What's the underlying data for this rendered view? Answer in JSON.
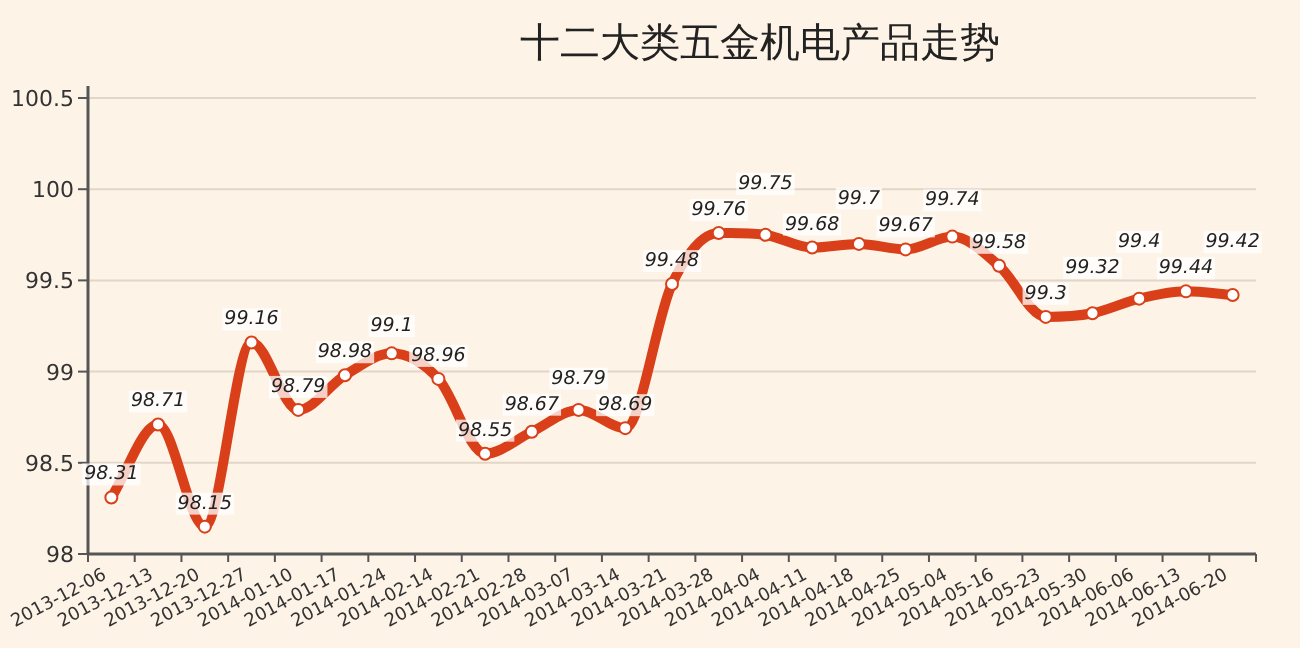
{
  "chart_data": {
    "type": "line",
    "title": "十二大类五金机电产品走势",
    "categories": [
      "2013-12-06",
      "2013-12-13",
      "2013-12-20",
      "2013-12-27",
      "2014-01-10",
      "2014-01-17",
      "2014-01-24",
      "2014-02-14",
      "2014-02-21",
      "2014-02-28",
      "2014-03-07",
      "2014-03-14",
      "2014-03-21",
      "2014-03-28",
      "2014-04-04",
      "2014-04-11",
      "2014-04-18",
      "2014-04-25",
      "2014-05-04",
      "2014-05-16",
      "2014-05-23",
      "2014-05-30",
      "2014-06-06",
      "2014-06-13",
      "2014-06-20"
    ],
    "series": [
      {
        "color": "#d9401a",
        "values": [
          98.31,
          98.71,
          98.15,
          99.16,
          98.79,
          98.98,
          99.1,
          98.96,
          98.55,
          98.67,
          98.79,
          98.69,
          99.48,
          99.76,
          99.75,
          99.68,
          99.7,
          99.67,
          99.74,
          99.58,
          99.3,
          99.32,
          99.4,
          99.44,
          99.42
        ]
      }
    ],
    "ylim": [
      98,
      100.5
    ],
    "yticks": [
      98,
      98.5,
      99,
      99.5,
      100,
      100.5
    ],
    "grid": "y",
    "marker": "circle",
    "line_style": "solid",
    "data_labels": true
  }
}
